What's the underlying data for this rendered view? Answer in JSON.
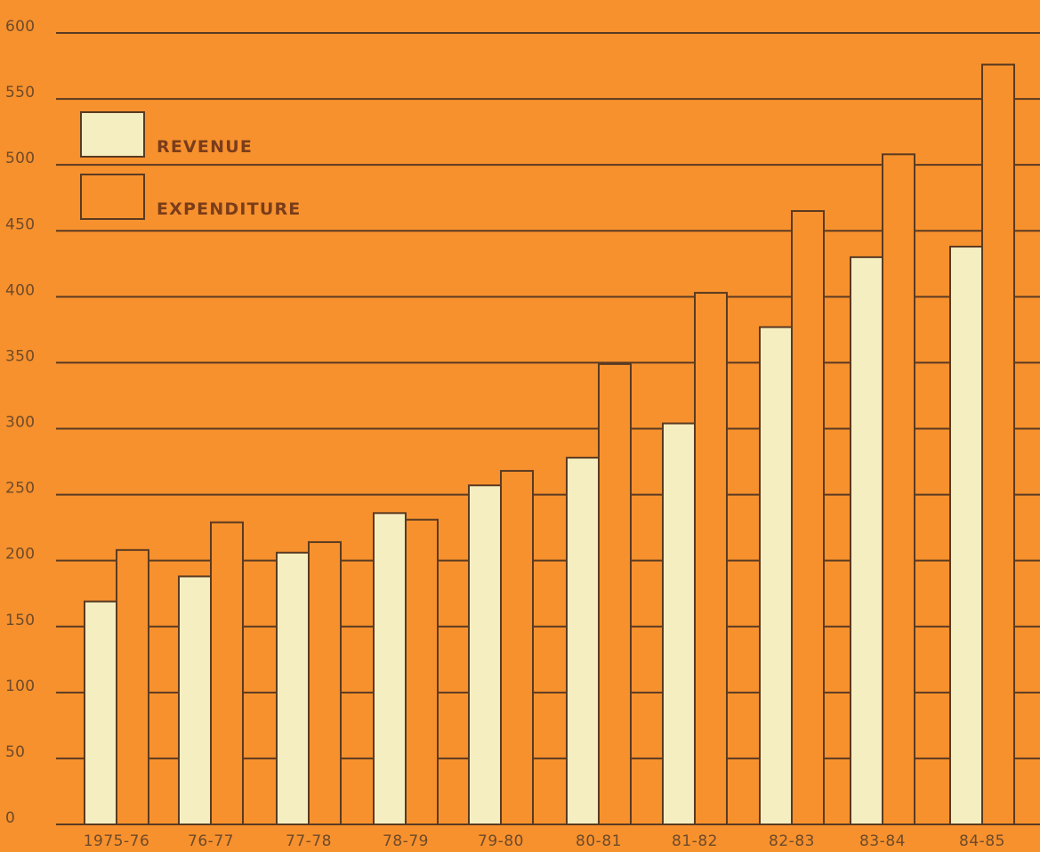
{
  "chart_data": {
    "type": "bar",
    "title": "",
    "xlabel": "",
    "ylabel": "",
    "ylim": [
      0,
      600
    ],
    "yticks": [
      0,
      50,
      100,
      150,
      200,
      250,
      300,
      350,
      400,
      450,
      500,
      550,
      600
    ],
    "grid": true,
    "legend_position": "top-left",
    "categories": [
      "1975-76",
      "76-77",
      "77-78",
      "78-79",
      "79-80",
      "80-81",
      "81-82",
      "82-83",
      "83-84",
      "84-85"
    ],
    "series": [
      {
        "name": "REVENUE",
        "color": "#f5eec0",
        "values": [
          169,
          188,
          206,
          236,
          257,
          278,
          304,
          377,
          430,
          438
        ]
      },
      {
        "name": "EXPENDITURE",
        "color": "#f7912d",
        "values": [
          208,
          229,
          214,
          231,
          268,
          349,
          403,
          465,
          508,
          576
        ]
      }
    ],
    "colors": {
      "background": "#f7912d",
      "gridline": "#5a3a22",
      "text": "#6e4a2a"
    }
  }
}
